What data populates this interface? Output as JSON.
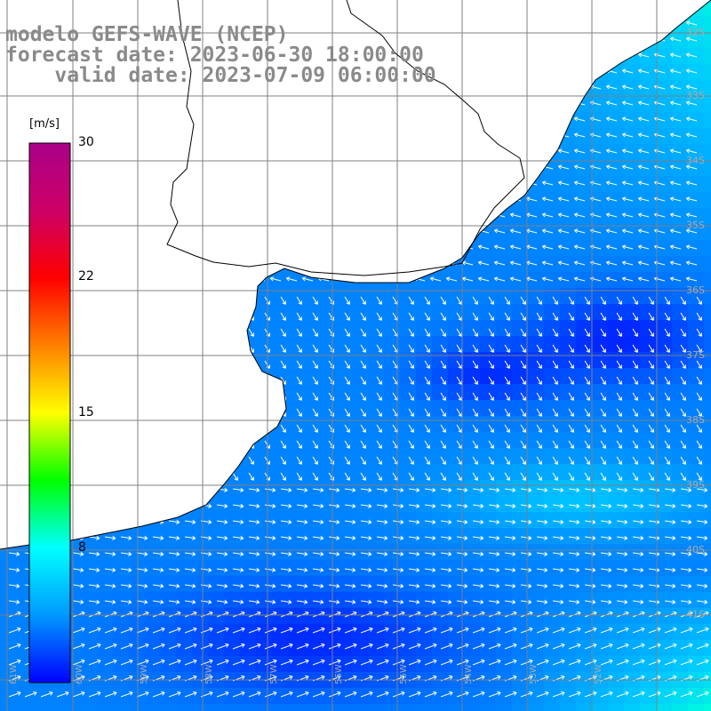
{
  "title": {
    "model": "modelo GEFS-WAVE (NCEP)",
    "forecast": "forecast date: 2023-06-30 18:00:00",
    "valid": "    valid date: 2023-07-09 06:00:00"
  },
  "colorbar": {
    "units": "[m/s]",
    "ticks": [
      "30",
      "22",
      "15",
      "8"
    ],
    "colors": [
      "#0000ff",
      "#0099ff",
      "#00ffff",
      "#00ff00",
      "#ffff00",
      "#ff8000",
      "#ff0000",
      "#cc0066",
      "#aa0088"
    ]
  },
  "grid": {
    "lon_labels": [
      "61W",
      "60W",
      "59W",
      "58W",
      "57W",
      "56W",
      "55W",
      "54W",
      "53W",
      "52W"
    ],
    "lat_labels": [
      "32S",
      "33S",
      "34S",
      "35S",
      "36S",
      "37S",
      "38S",
      "39S",
      "40S",
      "41S"
    ]
  },
  "field": {
    "variable": "wind speed",
    "colors": {
      "land": "#ffffff",
      "coast": "#000000",
      "grid": "#808080",
      "arrow": "#ffffff"
    }
  }
}
